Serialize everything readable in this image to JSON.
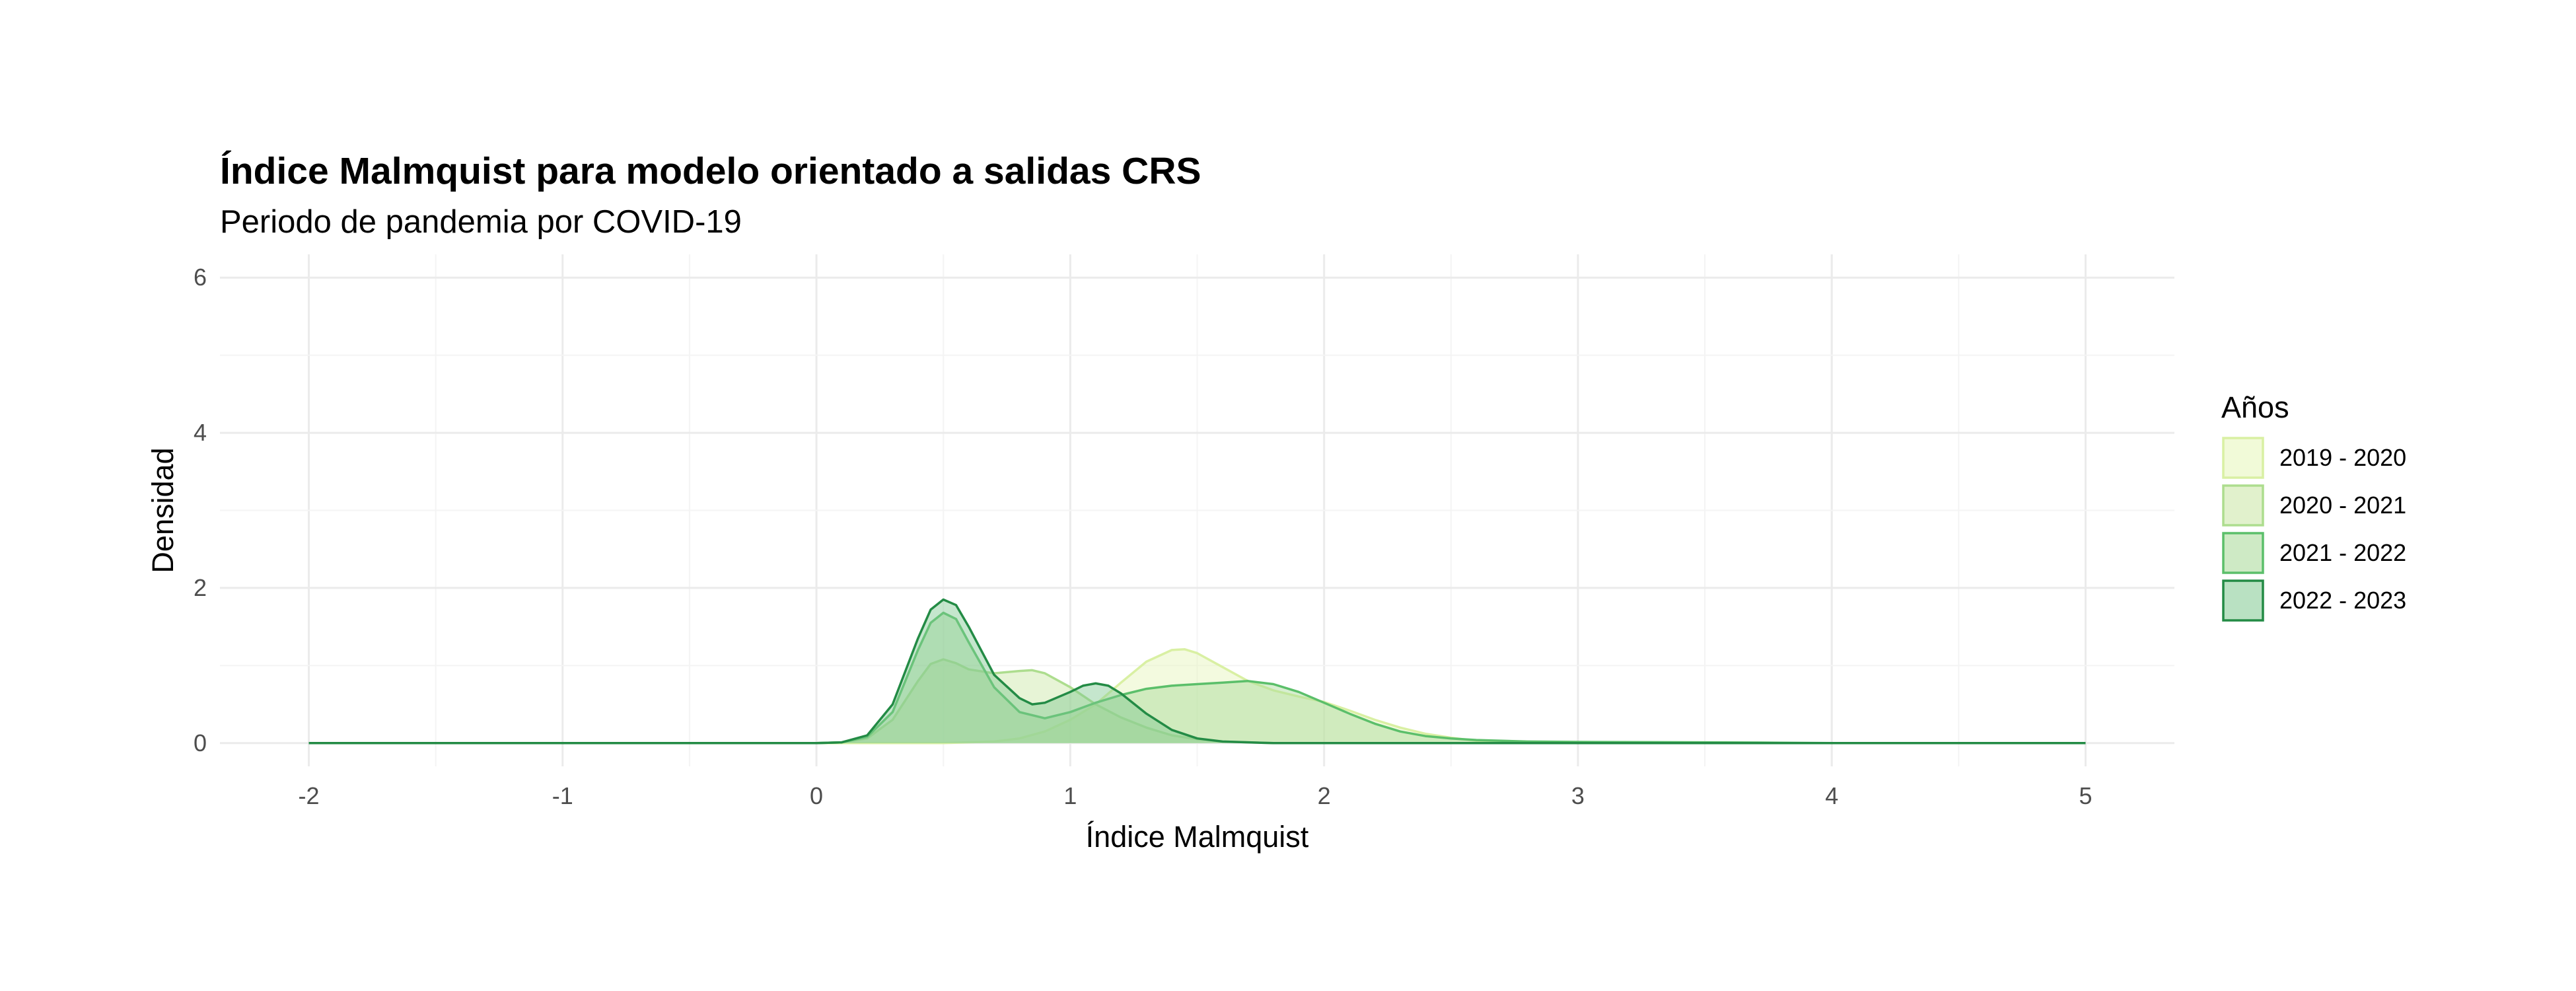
{
  "chart_data": {
    "type": "area",
    "title": "Índice Malmquist para modelo orientado a salidas CRS",
    "subtitle": "Periodo de pandemia por COVID-19",
    "xlabel": "Índice Malmquist",
    "ylabel": "Densidad",
    "xlim": [
      -2.35,
      5.35
    ],
    "ylim": [
      -0.3,
      6.3
    ],
    "x_ticks": [
      -2,
      -1,
      0,
      1,
      2,
      3,
      4,
      5
    ],
    "y_ticks": [
      0,
      2,
      4,
      6
    ],
    "grid": true,
    "legend": {
      "title": "Años",
      "placement": "right"
    },
    "series": [
      {
        "name": "2019 - 2020",
        "fill": "#E5F5B8",
        "stroke": "#D9F0A3",
        "points": [
          [
            -2,
            0
          ],
          [
            0,
            0
          ],
          [
            0.5,
            0
          ],
          [
            0.7,
            0.02
          ],
          [
            0.8,
            0.06
          ],
          [
            0.9,
            0.15
          ],
          [
            1.0,
            0.3
          ],
          [
            1.1,
            0.5
          ],
          [
            1.2,
            0.78
          ],
          [
            1.3,
            1.05
          ],
          [
            1.4,
            1.2
          ],
          [
            1.45,
            1.21
          ],
          [
            1.5,
            1.16
          ],
          [
            1.6,
            0.98
          ],
          [
            1.7,
            0.8
          ],
          [
            1.8,
            0.68
          ],
          [
            1.9,
            0.6
          ],
          [
            2.0,
            0.53
          ],
          [
            2.1,
            0.42
          ],
          [
            2.2,
            0.3
          ],
          [
            2.3,
            0.2
          ],
          [
            2.4,
            0.12
          ],
          [
            2.5,
            0.07
          ],
          [
            2.6,
            0.03
          ],
          [
            2.8,
            0.01
          ],
          [
            3.0,
            0
          ],
          [
            5,
            0
          ]
        ]
      },
      {
        "name": "2020 - 2021",
        "fill": "#C9E6A3",
        "stroke": "#ADDD8E",
        "points": [
          [
            -2,
            0
          ],
          [
            0,
            0
          ],
          [
            0.1,
            0.01
          ],
          [
            0.2,
            0.06
          ],
          [
            0.3,
            0.3
          ],
          [
            0.4,
            0.8
          ],
          [
            0.45,
            1.02
          ],
          [
            0.5,
            1.08
          ],
          [
            0.55,
            1.03
          ],
          [
            0.6,
            0.95
          ],
          [
            0.7,
            0.9
          ],
          [
            0.8,
            0.93
          ],
          [
            0.85,
            0.94
          ],
          [
            0.9,
            0.9
          ],
          [
            1.0,
            0.72
          ],
          [
            1.1,
            0.5
          ],
          [
            1.2,
            0.33
          ],
          [
            1.3,
            0.2
          ],
          [
            1.4,
            0.1
          ],
          [
            1.5,
            0.05
          ],
          [
            1.6,
            0.02
          ],
          [
            1.8,
            0
          ],
          [
            5,
            0
          ]
        ]
      },
      {
        "name": "2021 - 2022",
        "fill": "#A6D996",
        "stroke": "#5BBF6A",
        "points": [
          [
            -2,
            0
          ],
          [
            0,
            0
          ],
          [
            0.1,
            0.01
          ],
          [
            0.2,
            0.08
          ],
          [
            0.3,
            0.4
          ],
          [
            0.4,
            1.2
          ],
          [
            0.45,
            1.55
          ],
          [
            0.5,
            1.68
          ],
          [
            0.55,
            1.6
          ],
          [
            0.6,
            1.3
          ],
          [
            0.7,
            0.72
          ],
          [
            0.8,
            0.4
          ],
          [
            0.9,
            0.32
          ],
          [
            1.0,
            0.4
          ],
          [
            1.1,
            0.52
          ],
          [
            1.2,
            0.62
          ],
          [
            1.3,
            0.7
          ],
          [
            1.4,
            0.74
          ],
          [
            1.5,
            0.76
          ],
          [
            1.6,
            0.78
          ],
          [
            1.7,
            0.8
          ],
          [
            1.8,
            0.76
          ],
          [
            1.9,
            0.66
          ],
          [
            2.0,
            0.52
          ],
          [
            2.1,
            0.38
          ],
          [
            2.2,
            0.25
          ],
          [
            2.3,
            0.15
          ],
          [
            2.4,
            0.09
          ],
          [
            2.5,
            0.06
          ],
          [
            2.6,
            0.04
          ],
          [
            2.8,
            0.02
          ],
          [
            3.0,
            0.015
          ],
          [
            3.5,
            0.01
          ],
          [
            3.8,
            0.005
          ],
          [
            4.0,
            0
          ],
          [
            5,
            0
          ]
        ]
      },
      {
        "name": "2022 - 2023",
        "fill": "#7FC890",
        "stroke": "#238B45",
        "points": [
          [
            -2,
            0
          ],
          [
            0,
            0
          ],
          [
            0.1,
            0.01
          ],
          [
            0.2,
            0.1
          ],
          [
            0.3,
            0.5
          ],
          [
            0.4,
            1.35
          ],
          [
            0.45,
            1.72
          ],
          [
            0.5,
            1.85
          ],
          [
            0.55,
            1.78
          ],
          [
            0.6,
            1.5
          ],
          [
            0.7,
            0.88
          ],
          [
            0.8,
            0.58
          ],
          [
            0.85,
            0.5
          ],
          [
            0.9,
            0.52
          ],
          [
            1.0,
            0.66
          ],
          [
            1.05,
            0.74
          ],
          [
            1.1,
            0.77
          ],
          [
            1.15,
            0.74
          ],
          [
            1.2,
            0.64
          ],
          [
            1.3,
            0.38
          ],
          [
            1.4,
            0.17
          ],
          [
            1.5,
            0.06
          ],
          [
            1.6,
            0.02
          ],
          [
            1.8,
            0
          ],
          [
            5,
            0
          ]
        ]
      }
    ]
  }
}
